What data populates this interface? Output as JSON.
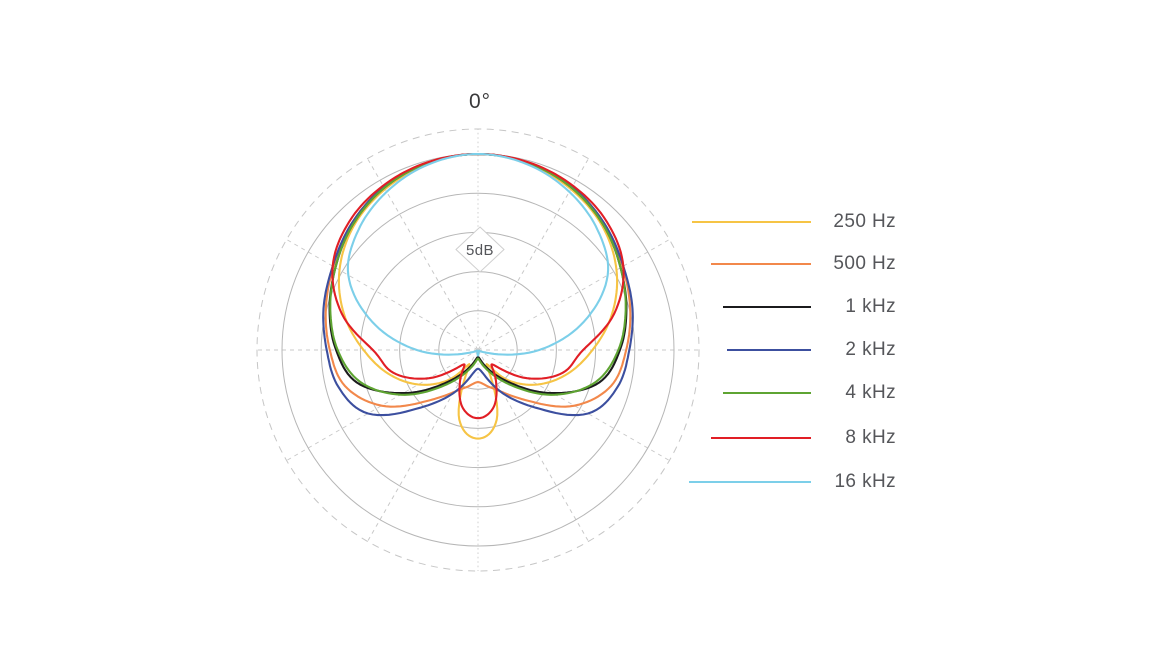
{
  "chart_data": {
    "type": "line",
    "subtype": "polar-pattern",
    "angle_label_top": "0°",
    "ring_label": "5dB",
    "ring_step_db": 5,
    "db_range": 25,
    "grid": {
      "rings_db": [
        0,
        -5,
        -10,
        -15,
        -20
      ],
      "outer_ring_dashed": true,
      "radial_step_deg": 30,
      "grid_color": "#b6b6b6",
      "dashed_ring_color": "#c6c6c6",
      "radial_color": "#c9c9c9"
    },
    "angles_deg": [
      0,
      15,
      30,
      45,
      60,
      75,
      90,
      105,
      120,
      135,
      150,
      165,
      180
    ],
    "series": [
      {
        "label": "250 Hz",
        "color": "#F6C445",
        "response_db": [
          0,
          -0.4,
          -1.3,
          -2.6,
          -4.6,
          -7.3,
          -10.4,
          -13.2,
          -16.2,
          -19.5,
          -22.8,
          -15.8,
          -13.7
        ]
      },
      {
        "label": "500 Hz",
        "color": "#F2884B",
        "response_db": [
          0,
          -0.3,
          -1.0,
          -2.2,
          -3.7,
          -4.9,
          -6.1,
          -7.4,
          -10.8,
          -15.8,
          -18.8,
          -20.2,
          -20.9
        ]
      },
      {
        "label": "1 kHz",
        "color": "#1B1B1D",
        "response_db": [
          0,
          -0.3,
          -1.1,
          -2.4,
          -4.0,
          -5.4,
          -6.9,
          -9.0,
          -14.0,
          -19.0,
          -22.0,
          -23.6,
          -24.1
        ]
      },
      {
        "label": "2 kHz",
        "color": "#3C4F9F",
        "response_db": [
          0,
          -0.3,
          -1.0,
          -2.2,
          -3.6,
          -4.6,
          -5.7,
          -6.6,
          -8.8,
          -14.6,
          -18.6,
          -21.6,
          -22.6
        ]
      },
      {
        "label": "4 kHz",
        "color": "#5EA432",
        "response_db": [
          0,
          -0.3,
          -1.1,
          -2.4,
          -4.0,
          -5.5,
          -7.1,
          -9.4,
          -13.6,
          -18.4,
          -21.5,
          -23.2,
          -23.9
        ]
      },
      {
        "label": "8 kHz",
        "color": "#E11E25",
        "response_db": [
          0,
          -0.2,
          -0.8,
          -1.8,
          -3.6,
          -7.0,
          -11.6,
          -13.8,
          -17.8,
          -22.4,
          -20.4,
          -17.4,
          -16.3
        ]
      },
      {
        "label": "16 kHz",
        "color": "#7CCFE9",
        "response_db": [
          0,
          -0.5,
          -1.7,
          -3.4,
          -5.9,
          -11.0,
          -17.2,
          -23.3,
          -24.7,
          -24.8,
          -24.8,
          -24.8,
          -24.3
        ]
      }
    ],
    "legend_text_color": "#55565a"
  }
}
